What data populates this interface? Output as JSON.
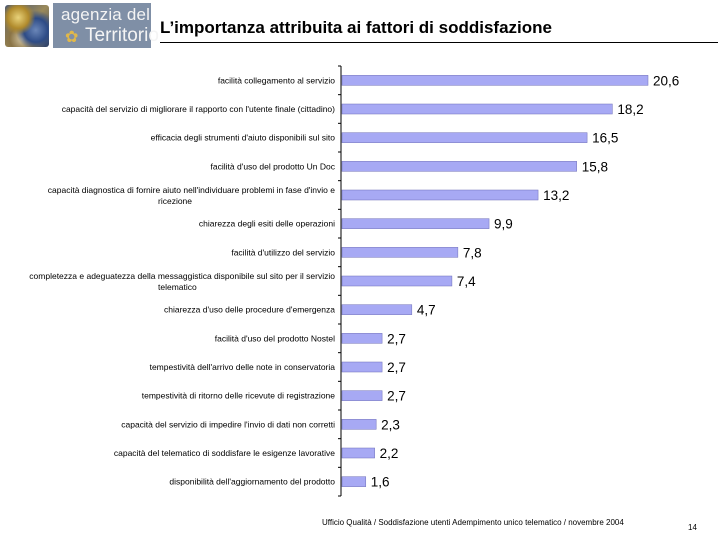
{
  "header": {
    "logo_line1": "agenzia del",
    "logo_line2": "Territorio",
    "title": "L’importanza attribuita ai fattori di soddisfazione"
  },
  "chart_data": {
    "type": "bar",
    "orientation": "horizontal",
    "title": "L’importanza attribuita ai fattori di soddisfazione",
    "xlabel": "",
    "ylabel": "",
    "xlim": [
      0,
      22
    ],
    "bar_color": "#a7a9f4",
    "categories": [
      [
        "facilità collegamento al servizio"
      ],
      [
        "capacità del servizio di migliorare il rapporto con l'utente finale (cittadino)"
      ],
      [
        "efficacia degli strumenti d'aiuto disponibili sul sito"
      ],
      [
        "facilità d'uso del prodotto Un Doc"
      ],
      [
        "capacità diagnostica di fornire aiuto nell'individuare problemi in fase d'invio e",
        "ricezione"
      ],
      [
        "chiarezza degli esiti delle operazioni"
      ],
      [
        "facilità d'utilizzo del servizio"
      ],
      [
        "completezza e adeguatezza della messaggistica disponibile sul sito per il servizio",
        "telematico"
      ],
      [
        "chiarezza d'uso delle procedure d'emergenza"
      ],
      [
        "facilità d'uso del prodotto Nostel"
      ],
      [
        "tempestività dell'arrivo delle note in conservatoria"
      ],
      [
        "tempestività di ritorno delle ricevute di registrazione"
      ],
      [
        "capacità del servizio di impedire l'invio di dati non corretti"
      ],
      [
        "capacità del telematico di soddisfare le esigenze lavorative"
      ],
      [
        "disponibilità dell'aggiornamento del prodotto"
      ]
    ],
    "values": [
      20.6,
      18.2,
      16.5,
      15.8,
      13.2,
      9.9,
      7.8,
      7.4,
      4.7,
      2.7,
      2.7,
      2.7,
      2.3,
      2.2,
      1.6
    ],
    "value_labels": [
      "20,6",
      "18,2",
      "16,5",
      "15,8",
      "13,2",
      "9,9",
      "7,8",
      "7,4",
      "4,7",
      "2,7",
      "2,7",
      "2,7",
      "2,3",
      "2,2",
      "1,6"
    ]
  },
  "footer": {
    "text": "Ufficio Qualità / Soddisfazione utenti Adempimento unico telematico / novembre 2004",
    "page_number": "14"
  }
}
